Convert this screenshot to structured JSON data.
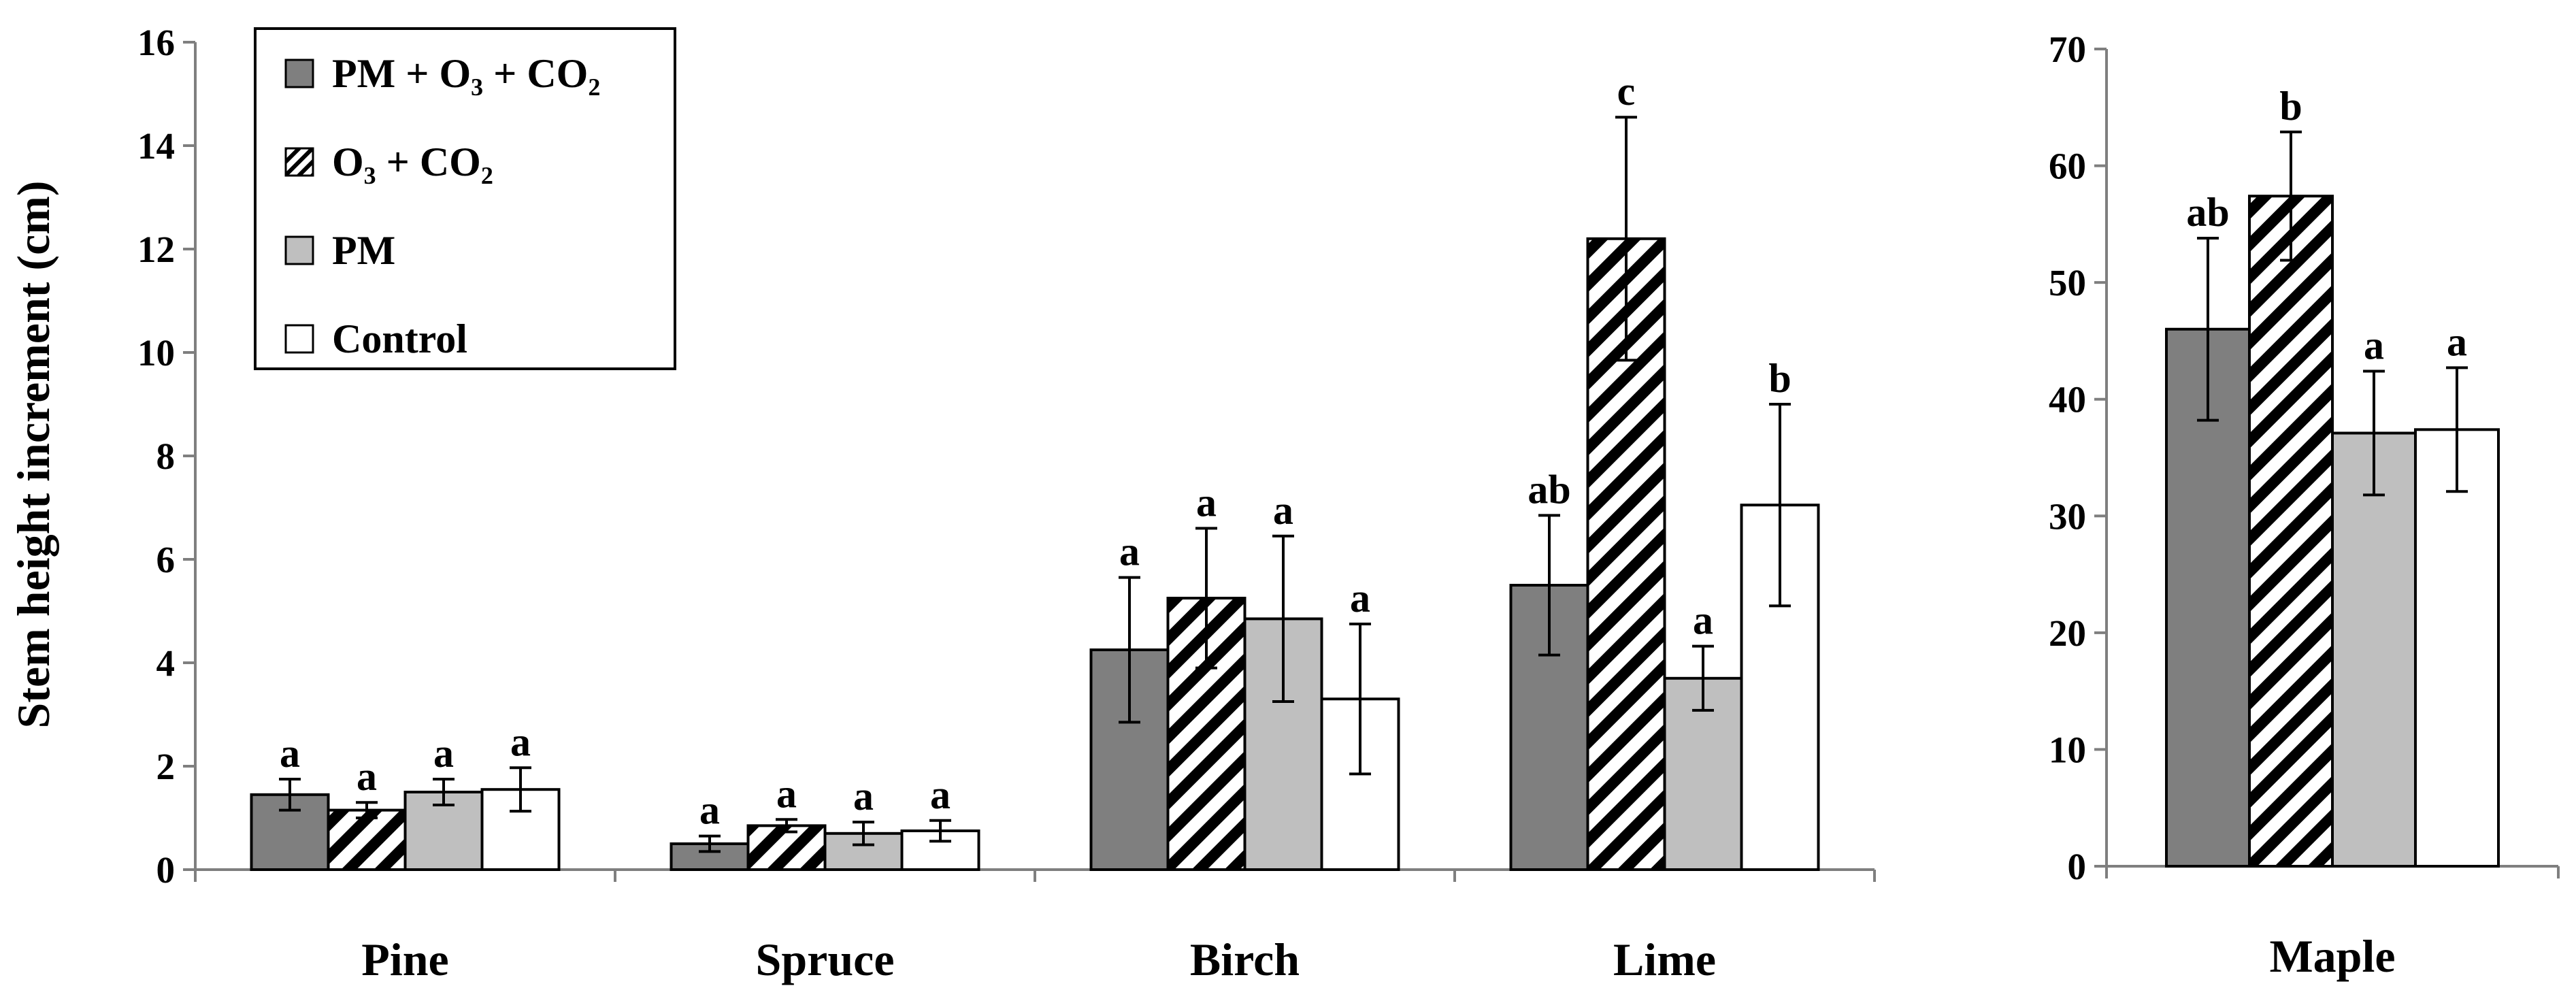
{
  "colors": {
    "pm_o3_co2": "#7f7f7f",
    "o3_co2_hatch": "#000000",
    "pm": "#bfbfbf",
    "control": "#ffffff",
    "axis": "#7f7f7f",
    "text": "#000000"
  },
  "chart_data": [
    {
      "type": "bar",
      "ylabel": "Stem height increment (cm)",
      "ylim": [
        0,
        16
      ],
      "yticks": [
        0,
        2,
        4,
        6,
        8,
        10,
        12,
        14,
        16
      ],
      "categories": [
        "Pine",
        "Spruce",
        "Birch",
        "Lime"
      ],
      "series": [
        {
          "name": "PM + O3 + CO2",
          "legend_label": "PM + O₃ + CO₂",
          "values": [
            1.45,
            0.5,
            4.25,
            5.5
          ],
          "errors": [
            0.3,
            0.15,
            1.4,
            1.35
          ],
          "letters": [
            "a",
            "a",
            "a",
            "ab"
          ]
        },
        {
          "name": "O3 + CO2",
          "legend_label": "O₃ + CO₂",
          "values": [
            1.15,
            0.85,
            5.25,
            12.2
          ],
          "errors": [
            0.15,
            0.12,
            1.35,
            2.35
          ],
          "letters": [
            "a",
            "a",
            "a",
            "c"
          ]
        },
        {
          "name": "PM",
          "legend_label": "PM",
          "values": [
            1.5,
            0.7,
            4.85,
            3.7
          ],
          "errors": [
            0.25,
            0.22,
            1.6,
            0.62
          ],
          "letters": [
            "a",
            "a",
            "a",
            "a"
          ]
        },
        {
          "name": "Control",
          "legend_label": "Control",
          "values": [
            1.55,
            0.75,
            3.3,
            7.05
          ],
          "errors": [
            0.42,
            0.2,
            1.45,
            1.95
          ],
          "letters": [
            "a",
            "a",
            "a",
            "b"
          ]
        }
      ],
      "legend": "top-left"
    },
    {
      "type": "bar",
      "ylabel": "",
      "ylim": [
        0,
        70
      ],
      "yticks": [
        0,
        10,
        20,
        30,
        40,
        50,
        60,
        70
      ],
      "categories": [
        "Maple"
      ],
      "series": [
        {
          "name": "PM + O3 + CO2",
          "values": [
            46.0
          ],
          "errors": [
            7.8
          ],
          "letters": [
            "ab"
          ]
        },
        {
          "name": "O3 + CO2",
          "values": [
            57.4
          ],
          "errors": [
            5.5
          ],
          "letters": [
            "b"
          ]
        },
        {
          "name": "PM",
          "values": [
            37.1
          ],
          "errors": [
            5.3
          ],
          "letters": [
            "a"
          ]
        },
        {
          "name": "Control",
          "values": [
            37.4
          ],
          "errors": [
            5.3
          ],
          "letters": [
            "a"
          ]
        }
      ]
    }
  ]
}
